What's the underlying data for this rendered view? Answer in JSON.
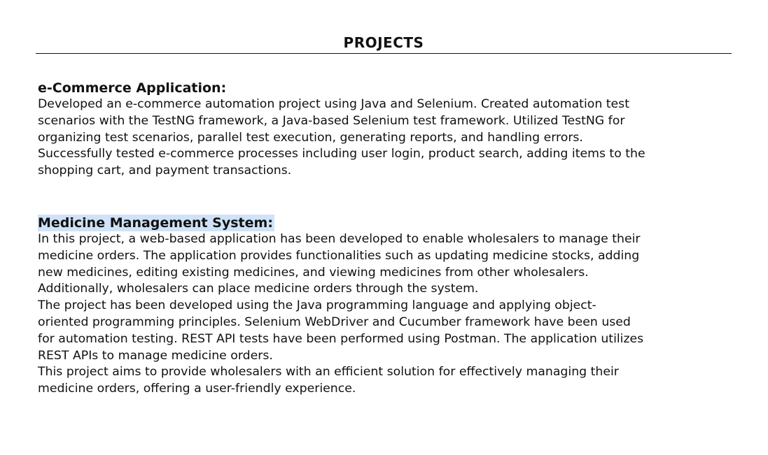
{
  "section": {
    "title": "PROJECTS"
  },
  "projects": [
    {
      "title": "e-Commerce Application:",
      "paragraphs": [
        "Developed an e-commerce automation project using Java and Selenium. Created automation test\nscenarios with the TestNG framework, a Java-based Selenium test framework. Utilized TestNG for\norganizing test scenarios, parallel test execution, generating reports, and handling errors.\nSuccessfully tested e-commerce processes including user login, product search, adding items to the\nshopping cart, and payment transactions."
      ]
    },
    {
      "title": "Medicine Management System:",
      "paragraphs": [
        "In this project, a web-based application has been developed to enable wholesalers to manage their\nmedicine orders. The application provides functionalities such as updating medicine stocks, adding\nnew medicines, editing existing medicines, and viewing medicines from other wholesalers.\nAdditionally, wholesalers can place medicine orders through the system.",
        "The project has been developed using the Java programming language and applying object-\noriented programming principles. Selenium WebDriver and Cucumber framework have been used\nfor automation testing. REST API tests have been performed using Postman. The application utilizes\nREST APIs to manage medicine orders.",
        "This project aims to provide wholesalers with an efficient solution for effectively managing their\nmedicine orders, offering a user-friendly experience."
      ]
    }
  ],
  "colors": {
    "text": "#111111",
    "highlight": "#cfe2f7",
    "background": "#ffffff"
  }
}
